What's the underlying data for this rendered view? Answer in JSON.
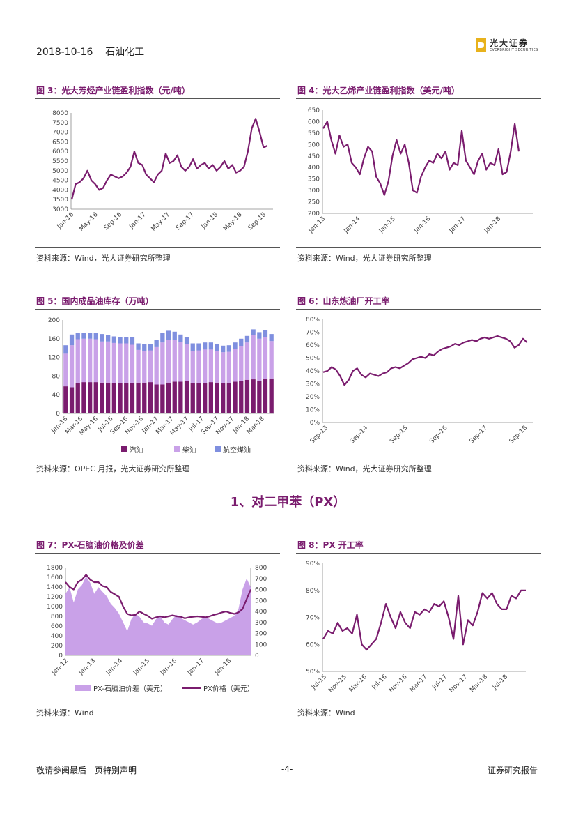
{
  "header": {
    "date": "2018-10-16",
    "category": "石油化工",
    "brand": "光大证券",
    "brand_en": "EVERBRIGHT SECURITIES"
  },
  "figures": {
    "fig3": {
      "title": "图 3：光大芳烃产业链盈利指数（元/吨）",
      "source": "资料来源：Wind，光大证券研究所整理"
    },
    "fig4": {
      "title": "图 4：光大乙烯产业链盈利指数（美元/吨）",
      "source": "资料来源：Wind，光大证券研究所整理"
    },
    "fig5": {
      "title": "图 5：国内成品油库存（万吨）",
      "source": "资料来源：OPEC 月报，光大证券研究所整理"
    },
    "fig6": {
      "title": "图 6：山东炼油厂开工率",
      "source": "资料来源：Wind，光大证券研究所整理"
    },
    "fig7": {
      "title": "图 7：PX-石脑油价格及价差",
      "source": "资料来源：Wind"
    },
    "fig8": {
      "title": "图 8：PX 开工率",
      "source": "资料来源：Wind"
    }
  },
  "section_title": "1、对二甲苯（PX）",
  "footer": {
    "left": "敬请参阅最后一页特别声明",
    "center": "-4-",
    "right": "证券研究报告"
  },
  "chart_data": [
    {
      "id": "fig3",
      "type": "line",
      "color": "#7a1c6e",
      "yticks": [
        "8000",
        "7500",
        "7000",
        "6500",
        "6000",
        "5500",
        "5000",
        "4500",
        "4000",
        "3500",
        "3000"
      ],
      "ylim": [
        3000,
        8000
      ],
      "xticks": [
        "Jan-16",
        "May-16",
        "Sep-16",
        "Jan-17",
        "May-17",
        "Sep-17",
        "Jan-18",
        "May-18",
        "Sep-18"
      ],
      "series": [
        {
          "name": "光大芳烃产业链盈利指数",
          "values": [
            3500,
            4300,
            4400,
            4600,
            5000,
            4500,
            4300,
            4000,
            4100,
            4500,
            4800,
            4700,
            4600,
            4700,
            4900,
            5200,
            6000,
            5400,
            5300,
            4800,
            4600,
            4400,
            4800,
            5000,
            5900,
            5400,
            5500,
            5800,
            5200,
            5000,
            5200,
            5600,
            5100,
            5300,
            5400,
            5100,
            5300,
            5000,
            5200,
            5500,
            5100,
            5300,
            4900,
            5000,
            5200,
            6000,
            7200,
            7700,
            7000,
            6200,
            6300
          ]
        }
      ]
    },
    {
      "id": "fig4",
      "type": "line",
      "color": "#7a1c6e",
      "yticks": [
        "650",
        "600",
        "550",
        "500",
        "450",
        "400",
        "350",
        "300",
        "250",
        "200"
      ],
      "ylim": [
        200,
        650
      ],
      "xticks": [
        "Jan-13",
        "Jan-14",
        "Jan-15",
        "Jan-16",
        "Jan-17",
        "Jan-18"
      ],
      "series": [
        {
          "name": "光大乙烯产业链盈利指数",
          "values": [
            570,
            600,
            520,
            460,
            540,
            490,
            500,
            420,
            400,
            370,
            440,
            490,
            470,
            360,
            330,
            280,
            340,
            450,
            520,
            460,
            500,
            420,
            300,
            290,
            360,
            400,
            430,
            420,
            460,
            440,
            470,
            390,
            420,
            410,
            560,
            430,
            400,
            370,
            430,
            460,
            390,
            420,
            410,
            480,
            370,
            380,
            470,
            590,
            470
          ]
        }
      ]
    },
    {
      "id": "fig5",
      "type": "bar",
      "stacked": true,
      "yticks": [
        "200",
        "160",
        "120",
        "80",
        "40",
        "0"
      ],
      "ylim": [
        0,
        200
      ],
      "xticks": [
        "Jan-16",
        "Mar-16",
        "May-16",
        "Jul-16",
        "Sep-16",
        "Nov-16",
        "Jan-17",
        "Mar-17",
        "May-17",
        "Jul-17",
        "Sep-17",
        "Nov-17",
        "Jan-18",
        "Mar-18"
      ],
      "legend": [
        "汽油",
        "柴油",
        "航空煤油"
      ],
      "colors": [
        "#7a1c6e",
        "#c9a1e8",
        "#7f8fdf"
      ],
      "series": [
        {
          "name": "汽油",
          "values": [
            58,
            56,
            65,
            67,
            67,
            67,
            66,
            66,
            65,
            65,
            65,
            65,
            66,
            66,
            67,
            62,
            62,
            66,
            68,
            68,
            69,
            65,
            65,
            65,
            67,
            66,
            65,
            66,
            68,
            70,
            72,
            73,
            70,
            74,
            75
          ]
        },
        {
          "name": "柴油",
          "values": [
            70,
            90,
            94,
            93,
            93,
            92,
            88,
            88,
            86,
            85,
            85,
            82,
            70,
            68,
            68,
            80,
            90,
            92,
            90,
            85,
            80,
            68,
            70,
            72,
            70,
            68,
            66,
            66,
            70,
            74,
            80,
            95,
            90,
            90,
            80
          ]
        },
        {
          "name": "航空煤油",
          "values": [
            18,
            23,
            13,
            12,
            12,
            13,
            16,
            14,
            14,
            14,
            14,
            16,
            14,
            14,
            14,
            15,
            20,
            19,
            17,
            16,
            15,
            17,
            15,
            15,
            15,
            14,
            14,
            14,
            14,
            16,
            14,
            12,
            14,
            14,
            15
          ]
        }
      ]
    },
    {
      "id": "fig6",
      "type": "line",
      "color": "#7a1c6e",
      "yticks": [
        "80%",
        "70%",
        "60%",
        "50%",
        "40%",
        "30%",
        "20%",
        "10%",
        "0%"
      ],
      "ylim": [
        0,
        80
      ],
      "xticks": [
        "Sep-13",
        "Sep-14",
        "Sep-15",
        "Sep-16",
        "Sep-17",
        "Sep-18"
      ],
      "series": [
        {
          "name": "山东炼油厂开工率",
          "values": [
            39,
            40,
            43,
            41,
            36,
            29,
            33,
            40,
            42,
            37,
            35,
            38,
            37,
            36,
            38,
            39,
            42,
            43,
            42,
            44,
            46,
            49,
            50,
            51,
            50,
            53,
            52,
            55,
            57,
            58,
            59,
            61,
            60,
            62,
            63,
            64,
            63,
            65,
            66,
            65,
            66,
            67,
            66,
            65,
            63,
            58,
            60,
            65,
            62
          ]
        }
      ]
    },
    {
      "id": "fig7",
      "type": "area+line",
      "colors": [
        "#c9a1e8",
        "#7a1c6e"
      ],
      "yticks_left": [
        "1800",
        "1600",
        "1400",
        "1200",
        "1000",
        "800",
        "600",
        "400",
        "200",
        "0"
      ],
      "ylim_left": [
        0,
        1800
      ],
      "yticks_right": [
        "800",
        "700",
        "600",
        "500",
        "400",
        "300",
        "200",
        "100",
        "0"
      ],
      "ylim_right": [
        0,
        800
      ],
      "xticks": [
        "Jan-12",
        "Jan-13",
        "Jan-14",
        "Jan-15",
        "Jan-16",
        "Jan-17",
        "Jan-18"
      ],
      "legend": [
        "PX-石脑油价差（美元）",
        "PX价格（美元）"
      ],
      "series": [
        {
          "name": "PX-石脑油价差（美元）",
          "axis": "right",
          "values": [
            560,
            620,
            480,
            600,
            640,
            720,
            660,
            560,
            620,
            580,
            540,
            470,
            430,
            380,
            300,
            220,
            330,
            380,
            350,
            300,
            290,
            270,
            330,
            360,
            300,
            280,
            330,
            370,
            340,
            320,
            300,
            280,
            300,
            330,
            350,
            330,
            310,
            290,
            300,
            320,
            340,
            360,
            420,
            600,
            700,
            620
          ]
        },
        {
          "name": "PX价格（美元）",
          "axis": "left",
          "values": [
            1500,
            1400,
            1350,
            1500,
            1550,
            1650,
            1550,
            1500,
            1500,
            1420,
            1400,
            1300,
            1250,
            1200,
            1000,
            850,
            820,
            830,
            900,
            850,
            810,
            750,
            780,
            800,
            780,
            800,
            820,
            800,
            790,
            760,
            780,
            790,
            800,
            790,
            780,
            800,
            830,
            850,
            880,
            900,
            870,
            850,
            880,
            950,
            1150,
            1350
          ]
        }
      ]
    },
    {
      "id": "fig8",
      "type": "line",
      "color": "#7a1c6e",
      "yticks": [
        "90%",
        "80%",
        "70%",
        "60%",
        "50%"
      ],
      "ylim": [
        50,
        90
      ],
      "xticks": [
        "Jul-15",
        "Nov-15",
        "Mar-16",
        "Jul-16",
        "Nov-16",
        "Mar-17",
        "Jul-17",
        "Nov-17",
        "Mar-18",
        "Jul-18"
      ],
      "series": [
        {
          "name": "PX开工率",
          "values": [
            62,
            65,
            64,
            68,
            65,
            66,
            64,
            71,
            60,
            58,
            60,
            62,
            68,
            75,
            70,
            66,
            72,
            68,
            66,
            72,
            71,
            73,
            72,
            75,
            74,
            76,
            70,
            62,
            78,
            60,
            69,
            67,
            72,
            79,
            77,
            79,
            75,
            73,
            73,
            78,
            77,
            80,
            80
          ]
        }
      ]
    }
  ]
}
